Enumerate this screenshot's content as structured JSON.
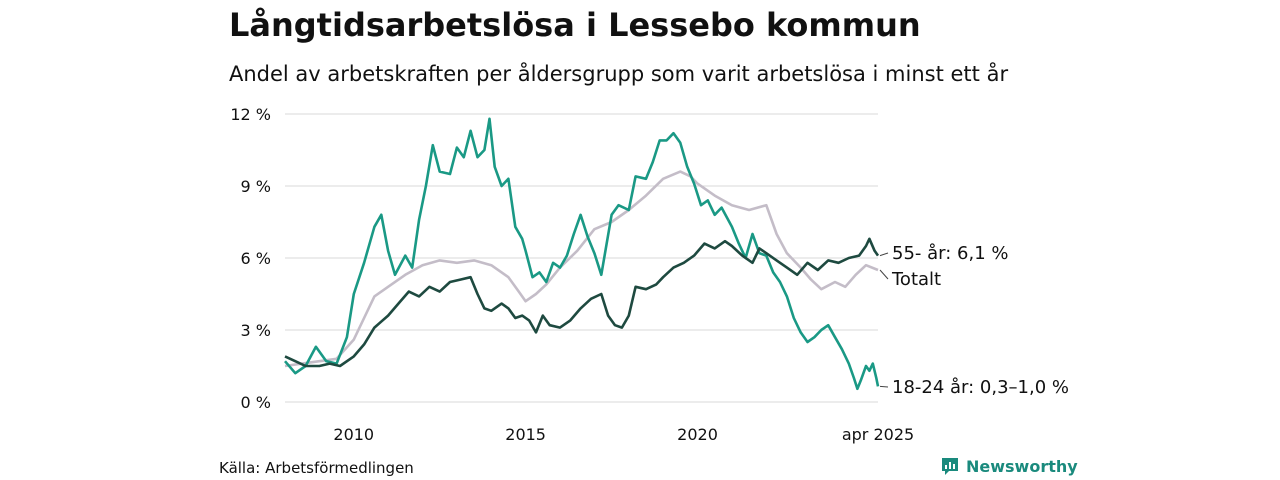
{
  "header": {
    "title": "Långtidsarbetslösa i Lessebo kommun",
    "subtitle": "Andel av arbetskraften per åldersgrupp som varit arbetslösa i minst ett år"
  },
  "footer": {
    "source": "Källa: Arbetsförmedlingen",
    "brand": "Newsworthy",
    "brand_color": "#1a8a7d"
  },
  "chart_data": {
    "type": "line",
    "x_range": [
      2008.0,
      2025.25
    ],
    "ylim": [
      0,
      12
    ],
    "y_ticks": [
      0,
      3,
      6,
      9,
      12
    ],
    "y_tick_labels": [
      "0 %",
      "3 %",
      "6 %",
      "9 %",
      "12 %"
    ],
    "x_ticks": [
      2010,
      2015,
      2020,
      2025.25
    ],
    "x_tick_labels": [
      "2010",
      "2015",
      "2020",
      "apr 2025"
    ],
    "grid": true,
    "series": [
      {
        "id": "totalt",
        "end_label": "Totalt",
        "color": "#c4bdc8",
        "points": [
          [
            2008.0,
            1.5
          ],
          [
            2008.5,
            1.6
          ],
          [
            2009.0,
            1.7
          ],
          [
            2009.5,
            1.8
          ],
          [
            2010.0,
            2.6
          ],
          [
            2010.3,
            3.5
          ],
          [
            2010.6,
            4.4
          ],
          [
            2011.0,
            4.8
          ],
          [
            2011.5,
            5.3
          ],
          [
            2012.0,
            5.7
          ],
          [
            2012.5,
            5.9
          ],
          [
            2013.0,
            5.8
          ],
          [
            2013.5,
            5.9
          ],
          [
            2014.0,
            5.7
          ],
          [
            2014.5,
            5.2
          ],
          [
            2014.8,
            4.6
          ],
          [
            2015.0,
            4.2
          ],
          [
            2015.3,
            4.5
          ],
          [
            2015.6,
            4.9
          ],
          [
            2016.0,
            5.6
          ],
          [
            2016.5,
            6.3
          ],
          [
            2017.0,
            7.2
          ],
          [
            2017.5,
            7.5
          ],
          [
            2018.0,
            8.0
          ],
          [
            2018.5,
            8.6
          ],
          [
            2019.0,
            9.3
          ],
          [
            2019.5,
            9.6
          ],
          [
            2019.8,
            9.4
          ],
          [
            2020.0,
            9.1
          ],
          [
            2020.5,
            8.6
          ],
          [
            2021.0,
            8.2
          ],
          [
            2021.5,
            8.0
          ],
          [
            2022.0,
            8.2
          ],
          [
            2022.3,
            7.0
          ],
          [
            2022.6,
            6.2
          ],
          [
            2023.0,
            5.6
          ],
          [
            2023.3,
            5.1
          ],
          [
            2023.6,
            4.7
          ],
          [
            2024.0,
            5.0
          ],
          [
            2024.3,
            4.8
          ],
          [
            2024.6,
            5.3
          ],
          [
            2024.9,
            5.7
          ],
          [
            2025.25,
            5.5
          ]
        ]
      },
      {
        "id": "18-24",
        "end_label": "18-24 år: 0,3–1,0 %",
        "color": "#1a9985",
        "points": [
          [
            2008.0,
            1.7
          ],
          [
            2008.3,
            1.2
          ],
          [
            2008.6,
            1.5
          ],
          [
            2008.9,
            2.3
          ],
          [
            2009.2,
            1.7
          ],
          [
            2009.5,
            1.6
          ],
          [
            2009.8,
            2.7
          ],
          [
            2010.0,
            4.5
          ],
          [
            2010.3,
            5.8
          ],
          [
            2010.6,
            7.3
          ],
          [
            2010.8,
            7.8
          ],
          [
            2011.0,
            6.3
          ],
          [
            2011.2,
            5.3
          ],
          [
            2011.5,
            6.1
          ],
          [
            2011.7,
            5.6
          ],
          [
            2011.9,
            7.6
          ],
          [
            2012.1,
            9.0
          ],
          [
            2012.3,
            10.7
          ],
          [
            2012.5,
            9.6
          ],
          [
            2012.8,
            9.5
          ],
          [
            2013.0,
            10.6
          ],
          [
            2013.2,
            10.2
          ],
          [
            2013.4,
            11.3
          ],
          [
            2013.6,
            10.2
          ],
          [
            2013.8,
            10.5
          ],
          [
            2013.95,
            11.8
          ],
          [
            2014.1,
            9.8
          ],
          [
            2014.3,
            9.0
          ],
          [
            2014.5,
            9.3
          ],
          [
            2014.7,
            7.3
          ],
          [
            2014.9,
            6.8
          ],
          [
            2015.0,
            6.3
          ],
          [
            2015.2,
            5.2
          ],
          [
            2015.4,
            5.4
          ],
          [
            2015.6,
            5.0
          ],
          [
            2015.8,
            5.8
          ],
          [
            2016.0,
            5.6
          ],
          [
            2016.2,
            6.1
          ],
          [
            2016.4,
            7.0
          ],
          [
            2016.6,
            7.8
          ],
          [
            2016.8,
            6.9
          ],
          [
            2017.0,
            6.2
          ],
          [
            2017.2,
            5.3
          ],
          [
            2017.5,
            7.8
          ],
          [
            2017.7,
            8.2
          ],
          [
            2018.0,
            8.0
          ],
          [
            2018.2,
            9.4
          ],
          [
            2018.5,
            9.3
          ],
          [
            2018.7,
            10.0
          ],
          [
            2018.9,
            10.9
          ],
          [
            2019.1,
            10.9
          ],
          [
            2019.3,
            11.2
          ],
          [
            2019.5,
            10.8
          ],
          [
            2019.7,
            9.8
          ],
          [
            2019.9,
            9.1
          ],
          [
            2020.1,
            8.2
          ],
          [
            2020.3,
            8.4
          ],
          [
            2020.5,
            7.8
          ],
          [
            2020.7,
            8.1
          ],
          [
            2021.0,
            7.3
          ],
          [
            2021.2,
            6.6
          ],
          [
            2021.4,
            6.0
          ],
          [
            2021.6,
            7.0
          ],
          [
            2021.8,
            6.2
          ],
          [
            2022.0,
            6.1
          ],
          [
            2022.2,
            5.4
          ],
          [
            2022.4,
            5.0
          ],
          [
            2022.6,
            4.4
          ],
          [
            2022.8,
            3.5
          ],
          [
            2023.0,
            2.9
          ],
          [
            2023.2,
            2.5
          ],
          [
            2023.4,
            2.7
          ],
          [
            2023.6,
            3.0
          ],
          [
            2023.8,
            3.2
          ],
          [
            2024.0,
            2.7
          ],
          [
            2024.2,
            2.2
          ],
          [
            2024.4,
            1.6
          ],
          [
            2024.55,
            1.0
          ],
          [
            2024.65,
            0.55
          ],
          [
            2024.75,
            0.9
          ],
          [
            2024.9,
            1.5
          ],
          [
            2025.0,
            1.3
          ],
          [
            2025.1,
            1.6
          ],
          [
            2025.2,
            1.0
          ],
          [
            2025.25,
            0.65
          ]
        ]
      },
      {
        "id": "55-",
        "end_label": "55- år: 6,1 %",
        "color": "#1e4a40",
        "points": [
          [
            2008.0,
            1.9
          ],
          [
            2008.3,
            1.7
          ],
          [
            2008.6,
            1.5
          ],
          [
            2009.0,
            1.5
          ],
          [
            2009.3,
            1.6
          ],
          [
            2009.6,
            1.5
          ],
          [
            2010.0,
            1.9
          ],
          [
            2010.3,
            2.4
          ],
          [
            2010.6,
            3.1
          ],
          [
            2011.0,
            3.6
          ],
          [
            2011.3,
            4.1
          ],
          [
            2011.6,
            4.6
          ],
          [
            2011.9,
            4.4
          ],
          [
            2012.2,
            4.8
          ],
          [
            2012.5,
            4.6
          ],
          [
            2012.8,
            5.0
          ],
          [
            2013.1,
            5.1
          ],
          [
            2013.4,
            5.2
          ],
          [
            2013.6,
            4.5
          ],
          [
            2013.8,
            3.9
          ],
          [
            2014.0,
            3.8
          ],
          [
            2014.3,
            4.1
          ],
          [
            2014.5,
            3.9
          ],
          [
            2014.7,
            3.5
          ],
          [
            2014.9,
            3.6
          ],
          [
            2015.1,
            3.4
          ],
          [
            2015.3,
            2.9
          ],
          [
            2015.5,
            3.6
          ],
          [
            2015.7,
            3.2
          ],
          [
            2016.0,
            3.1
          ],
          [
            2016.3,
            3.4
          ],
          [
            2016.6,
            3.9
          ],
          [
            2016.9,
            4.3
          ],
          [
            2017.2,
            4.5
          ],
          [
            2017.4,
            3.6
          ],
          [
            2017.6,
            3.2
          ],
          [
            2017.8,
            3.1
          ],
          [
            2018.0,
            3.6
          ],
          [
            2018.2,
            4.8
          ],
          [
            2018.5,
            4.7
          ],
          [
            2018.8,
            4.9
          ],
          [
            2019.0,
            5.2
          ],
          [
            2019.3,
            5.6
          ],
          [
            2019.6,
            5.8
          ],
          [
            2019.9,
            6.1
          ],
          [
            2020.2,
            6.6
          ],
          [
            2020.5,
            6.4
          ],
          [
            2020.8,
            6.7
          ],
          [
            2021.0,
            6.5
          ],
          [
            2021.3,
            6.1
          ],
          [
            2021.6,
            5.8
          ],
          [
            2021.8,
            6.4
          ],
          [
            2022.0,
            6.2
          ],
          [
            2022.3,
            5.9
          ],
          [
            2022.6,
            5.6
          ],
          [
            2022.9,
            5.3
          ],
          [
            2023.2,
            5.8
          ],
          [
            2023.5,
            5.5
          ],
          [
            2023.8,
            5.9
          ],
          [
            2024.1,
            5.8
          ],
          [
            2024.4,
            6.0
          ],
          [
            2024.7,
            6.1
          ],
          [
            2024.9,
            6.5
          ],
          [
            2025.0,
            6.8
          ],
          [
            2025.15,
            6.3
          ],
          [
            2025.25,
            6.1
          ]
        ]
      }
    ]
  }
}
